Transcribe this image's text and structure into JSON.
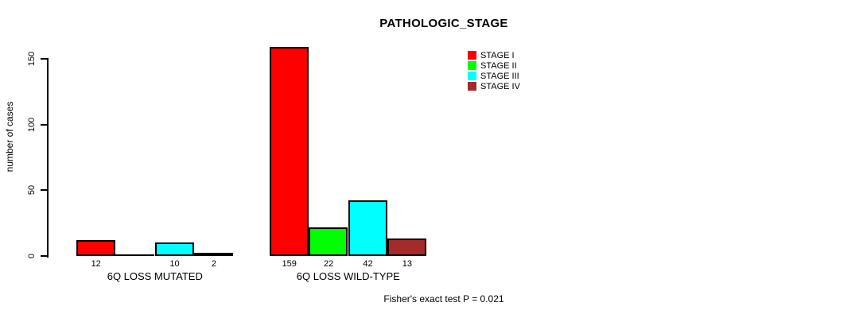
{
  "chart_data": {
    "type": "bar",
    "title": "PATHOLOGIC_STAGE",
    "ylabel": "number of cases",
    "xlabel": "",
    "yticks": [
      0,
      50,
      100,
      150
    ],
    "ylim": [
      0,
      159
    ],
    "grid": false,
    "legend_position": "top-right",
    "legend": [
      {
        "label": "STAGE I",
        "color": "#ff0000"
      },
      {
        "label": "STAGE II",
        "color": "#00ff00"
      },
      {
        "label": "STAGE III",
        "color": "#00ffff"
      },
      {
        "label": "STAGE IV",
        "color": "#a52a2a"
      }
    ],
    "series": [
      "STAGE I",
      "STAGE II",
      "STAGE III",
      "STAGE IV"
    ],
    "groups": [
      {
        "label": "6Q LOSS MUTATED",
        "values": [
          12,
          0,
          10,
          2
        ],
        "bar_labels": [
          "12",
          null,
          "10",
          "2"
        ]
      },
      {
        "label": "6Q LOSS WILD-TYPE",
        "values": [
          159,
          22,
          42,
          13
        ],
        "bar_labels": [
          "159",
          "22",
          "42",
          "13"
        ]
      }
    ],
    "annotation": "Fisher's exact test P = 0.021"
  },
  "colors": {
    "stage1": "#ff0000",
    "stage2": "#00ff00",
    "stage3": "#00ffff",
    "stage4": "#a52a2a",
    "axis": "#000000",
    "background": "#ffffff"
  }
}
